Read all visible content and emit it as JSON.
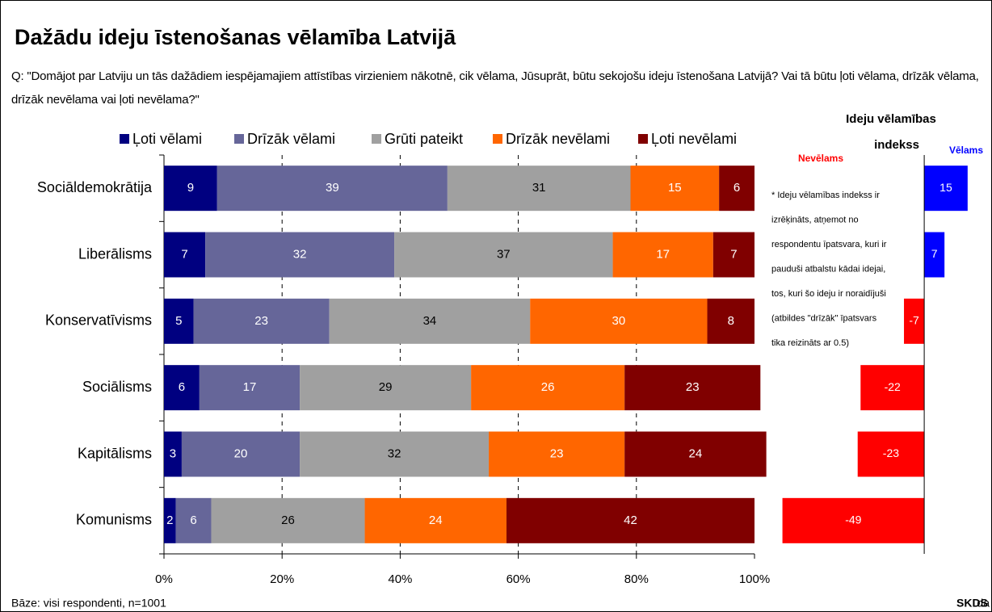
{
  "chart_data": [
    {
      "type": "stacked-bar-h",
      "title": "Dažādu ideju īstenošanas vēlamība Latvijā",
      "subtitle": "Q: \"Domājot par Latviju un tās dažādiem iespējamajiem attīstības virzieniem nākotnē, cik vēlama, Jūsuprāt, būtu sekojošu ideju īstenošana Latvijā? Vai tā būtu ļoti vēlama, drīzāk vēlama, drīzāk nevēlama vai ļoti nevēlama?\"",
      "categories": [
        "Sociāldemokrātija",
        "Liberālisms",
        "Konservatīvisms",
        "Sociālisms",
        "Kapitālisms",
        "Komunisms"
      ],
      "series": [
        {
          "name": "Ļoti vēlami",
          "color": "#000080",
          "values": [
            9,
            7,
            5,
            6,
            3,
            2
          ]
        },
        {
          "name": "Drīzāk vēlami",
          "color": "#666699",
          "values": [
            39,
            32,
            23,
            17,
            20,
            6
          ]
        },
        {
          "name": "Grūti pateikt",
          "color": "#a0a0a0",
          "values": [
            31,
            37,
            34,
            29,
            32,
            26
          ]
        },
        {
          "name": "Drīzāk nevēlami",
          "color": "#ff6600",
          "values": [
            15,
            17,
            30,
            26,
            23,
            24
          ]
        },
        {
          "name": "Ļoti nevēlami",
          "color": "#800000",
          "values": [
            6,
            7,
            8,
            23,
            24,
            42
          ]
        }
      ],
      "xlim": [
        0,
        100
      ],
      "xticks": [
        {
          "value": 0,
          "label": "0%"
        },
        {
          "value": 20,
          "label": "20%"
        },
        {
          "value": 40,
          "label": "40%"
        },
        {
          "value": 60,
          "label": "60%"
        },
        {
          "value": 80,
          "label": "80%"
        },
        {
          "value": 100,
          "label": "100%"
        }
      ],
      "grid": true,
      "note": "Bāze: visi respondenti, n=1001",
      "source_bold": "SKDS",
      "source": "da"
    },
    {
      "type": "index-bar-h",
      "title": [
        "Ideju vēlamības",
        "indekss"
      ],
      "negative_label": "Nevēlams",
      "positive_label": "Vēlams",
      "values": [
        15,
        7,
        -7,
        -22,
        -23,
        -49
      ],
      "color_positive": "#0000ff",
      "color_negative": "#ff0000",
      "xlim": [
        -50,
        17
      ],
      "note": [
        "* Ideju vēlamības indekss ir",
        "izrēķināts, atņemot  no",
        "respondentu īpatsvara, kuri ir",
        "pauduši atbalstu kādai idejai,",
        "tos, kuri šo ideju ir noraidījuši",
        "(atbildes \"drīzāk\" īpatsvars",
        "tika reizināts ar 0.5)"
      ]
    }
  ]
}
